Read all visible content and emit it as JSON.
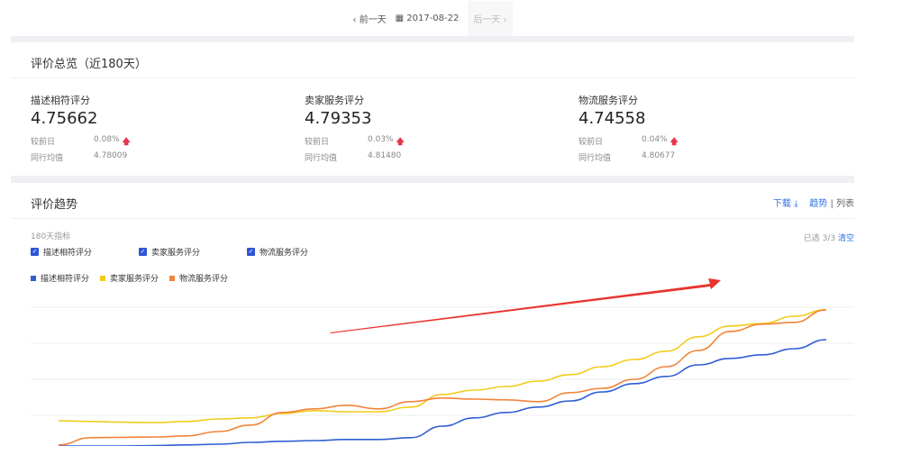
{
  "topbar": {
    "prev": "前一天",
    "date": "2017-08-22",
    "next": "后一天",
    "prev_icon": "chevron-left-icon",
    "calendar_icon": "calendar-icon",
    "next_icon": "chevron-right-icon"
  },
  "overview": {
    "title": "评价总览（近180天）",
    "compare_label": "较前日",
    "avg_label": "同行均值",
    "metrics": [
      {
        "label": "描述相符评分",
        "value": "4.75662",
        "change": "0.08%",
        "trend": "up",
        "avg": "4.78009"
      },
      {
        "label": "卖家服务评分",
        "value": "4.79353",
        "change": "0.03%",
        "trend": "up",
        "avg": "4.81480"
      },
      {
        "label": "物流服务评分",
        "value": "4.74558",
        "change": "0.04%",
        "trend": "up",
        "avg": "4.80677"
      }
    ]
  },
  "trend": {
    "title": "评价趋势",
    "download": "下载",
    "view_trend": "趋势",
    "separator": "|",
    "view_list": "列表",
    "indicator_label": "180天指标",
    "selected": "已选 3/3",
    "clear": "清空",
    "checkboxes": [
      {
        "label": "描述相符评分",
        "checked": true
      },
      {
        "label": "卖家服务评分",
        "checked": true
      },
      {
        "label": "物流服务评分",
        "checked": true
      }
    ]
  },
  "chart_data": {
    "type": "line",
    "legend_position": "top-left",
    "grid": true,
    "ylim": [
      0,
      4
    ],
    "series": [
      {
        "name": "描述相符评分",
        "color": "#2f5fd4",
        "values": [
          0,
          0.08,
          0.15,
          0.16,
          0.18,
          0.2,
          0.25,
          0.28,
          0.3,
          0.33,
          0.33,
          0.38,
          0.7,
          0.93,
          1.08,
          1.23,
          1.4,
          1.65,
          1.88,
          2.08,
          2.4,
          2.58,
          2.68,
          2.85,
          3.1
        ]
      },
      {
        "name": "卖家服务评分",
        "color": "#f2cc1c",
        "values": [
          0.85,
          0.83,
          0.81,
          0.8,
          0.83,
          0.9,
          0.93,
          1.05,
          1.13,
          1.1,
          1.1,
          1.23,
          1.58,
          1.7,
          1.8,
          1.95,
          2.13,
          2.35,
          2.55,
          2.78,
          3.18,
          3.48,
          3.55,
          3.75,
          3.93
        ]
      },
      {
        "name": "物流服务评分",
        "color": "#f2843a",
        "values": [
          0.18,
          0.38,
          0.39,
          0.4,
          0.43,
          0.55,
          0.73,
          1.08,
          1.18,
          1.28,
          1.18,
          1.38,
          1.48,
          1.45,
          1.43,
          1.38,
          1.63,
          1.75,
          2.0,
          2.35,
          2.8,
          3.33,
          3.53,
          3.58,
          3.93
        ]
      }
    ],
    "annotation": {
      "type": "arrow",
      "color": "#e8332e"
    }
  }
}
